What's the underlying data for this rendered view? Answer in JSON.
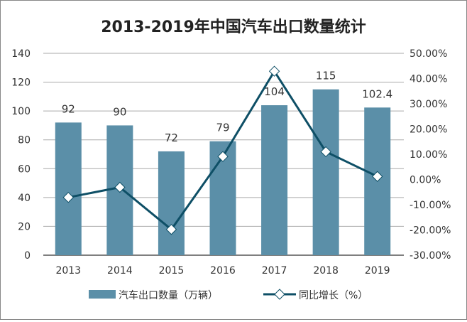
{
  "chart_data": {
    "type": "bar+line",
    "title": "2013-2019年中国汽车出口数量统计",
    "categories": [
      "2013",
      "2014",
      "2015",
      "2016",
      "2017",
      "2018",
      "2019"
    ],
    "series": [
      {
        "name": "汽车出口数量（万辆）",
        "type": "bar",
        "axis": "left",
        "values": [
          92,
          90,
          72,
          79,
          104,
          115,
          102.4
        ],
        "labels": [
          "92",
          "90",
          "72",
          "79",
          "104",
          "115",
          "102.4"
        ],
        "color": "#5b8fa8"
      },
      {
        "name": "同比增长（%）",
        "type": "line",
        "axis": "right",
        "values": [
          -7.1,
          -3.1,
          -19.8,
          9.1,
          42.9,
          11.0,
          1.2
        ],
        "color": "#0e4f66",
        "marker": "diamond"
      }
    ],
    "left_axis": {
      "ylim": [
        0,
        140
      ],
      "ticks": [
        "0",
        "20",
        "40",
        "60",
        "80",
        "100",
        "120",
        "140"
      ]
    },
    "right_axis": {
      "ylim": [
        -30,
        50
      ],
      "ticks": [
        "-30.00%",
        "-20.00%",
        "-10.00%",
        "0.00%",
        "10.00%",
        "20.00%",
        "30.00%",
        "40.00%",
        "50.00%"
      ]
    },
    "grid": true,
    "legend": "bottom"
  }
}
